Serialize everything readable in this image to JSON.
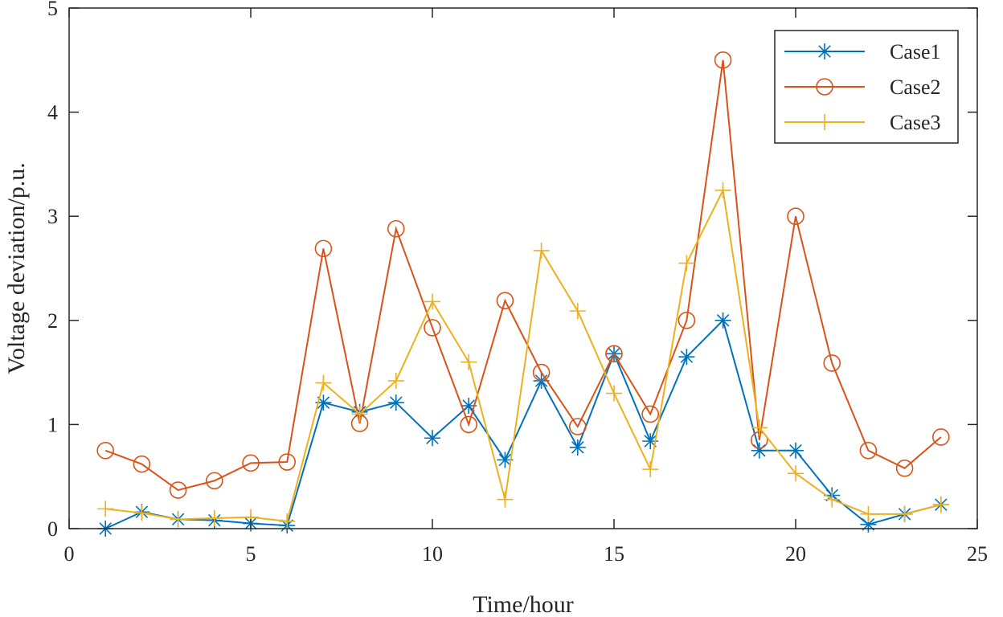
{
  "chart_data": {
    "type": "line",
    "title": "",
    "xlabel": "Time/hour",
    "ylabel": "Voltage deviation/p.u.",
    "xlim": [
      0,
      25
    ],
    "ylim": [
      0,
      5
    ],
    "xticks": [
      0,
      5,
      10,
      15,
      20,
      25
    ],
    "yticks": [
      0,
      1,
      2,
      3,
      4,
      5
    ],
    "xtick_labels": [
      "0",
      "5",
      "10",
      "15",
      "20",
      "25"
    ],
    "ytick_labels": [
      "0",
      "1",
      "2",
      "3",
      "4",
      "5"
    ],
    "grid": false,
    "legend_position": "top-right",
    "x": [
      1,
      2,
      3,
      4,
      5,
      6,
      7,
      8,
      9,
      10,
      11,
      12,
      13,
      14,
      15,
      16,
      17,
      18,
      19,
      20,
      21,
      22,
      23,
      24
    ],
    "series": [
      {
        "name": "Case1",
        "color": "#0072BD",
        "marker": "asterisk",
        "values": [
          0.0,
          0.16,
          0.09,
          0.08,
          0.05,
          0.03,
          1.21,
          1.12,
          1.21,
          0.87,
          1.18,
          0.66,
          1.42,
          0.78,
          1.68,
          0.84,
          1.65,
          2.0,
          0.75,
          0.75,
          0.32,
          0.04,
          0.14,
          0.23
        ]
      },
      {
        "name": "Case2",
        "color": "#D95319",
        "marker": "circle",
        "values": [
          0.75,
          0.62,
          0.37,
          0.46,
          0.63,
          0.64,
          2.69,
          1.01,
          2.88,
          1.93,
          1.0,
          2.19,
          1.5,
          0.98,
          1.68,
          1.1,
          2.0,
          4.5,
          0.85,
          3.0,
          1.59,
          0.75,
          0.58,
          0.88
        ]
      },
      {
        "name": "Case3",
        "color": "#EDB120",
        "marker": "plus",
        "values": [
          0.19,
          0.15,
          0.09,
          0.1,
          0.11,
          0.07,
          1.4,
          1.1,
          1.42,
          2.18,
          1.6,
          0.28,
          2.67,
          2.09,
          1.3,
          0.57,
          2.55,
          3.25,
          0.97,
          0.53,
          0.28,
          0.14,
          0.14,
          0.23
        ]
      }
    ]
  }
}
